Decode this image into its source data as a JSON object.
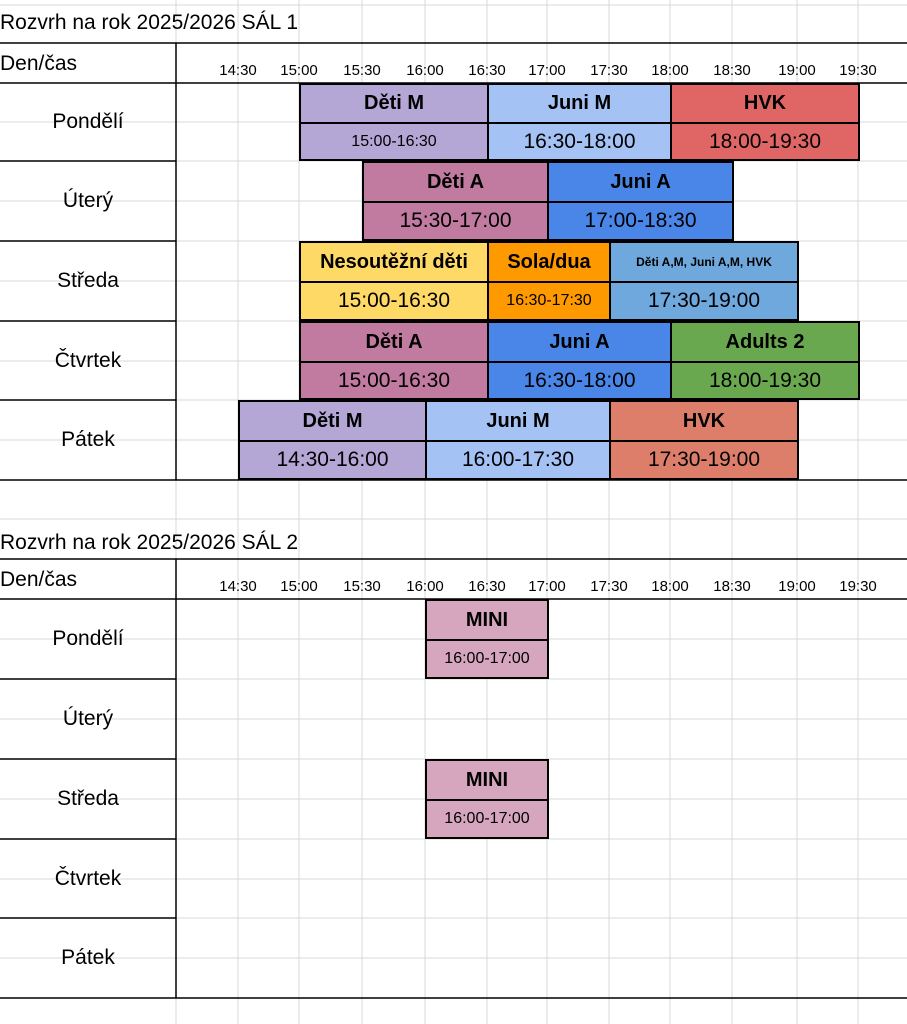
{
  "colors": {
    "deti_m": "#b4a7d6",
    "juni_m": "#a4c2f4",
    "hvk_red": "#e06666",
    "deti_a": "#c27ba0",
    "juni_a": "#4a86e8",
    "nesoutezni": "#ffd966",
    "sola": "#ff9900",
    "deti_mix": "#6fa8dc",
    "adults": "#6aa84f",
    "hvk_salmon": "#dd7e6b",
    "mini": "#d5a6bd"
  },
  "sal1": {
    "title": "Rozvrh na rok 2025/2026 SÁL 1",
    "header": "Den/čas",
    "times": [
      "14:30",
      "15:00",
      "15:30",
      "16:00",
      "16:30",
      "17:00",
      "17:30",
      "18:00",
      "18:30",
      "19:00",
      "19:30"
    ],
    "days": [
      "Pondělí",
      "Úterý",
      "Středa",
      "Čtvrtek",
      "Pátek"
    ],
    "blocks": [
      {
        "name": "Děti M",
        "time": "15:00-16:30",
        "color": "deti_m"
      },
      {
        "name": "Juni M",
        "time": "16:30-18:00",
        "color": "juni_m"
      },
      {
        "name": "HVK",
        "time": "18:00-19:30",
        "color": "hvk_red"
      },
      {
        "name": "Děti A",
        "time": "15:30-17:00",
        "color": "deti_a"
      },
      {
        "name": "Juni A",
        "time": "17:00-18:30",
        "color": "juni_a"
      },
      {
        "name": "Nesoutěžní děti",
        "time": "15:00-16:30",
        "color": "nesoutezni"
      },
      {
        "name": "Sola/dua",
        "time": "16:30-17:30",
        "color": "sola"
      },
      {
        "name": "Děti A,M, Juni A,M, HVK",
        "time": "17:30-19:00",
        "color": "deti_mix"
      },
      {
        "name": "Děti A",
        "time": "15:00-16:30",
        "color": "deti_a"
      },
      {
        "name": "Juni A",
        "time": "16:30-18:00",
        "color": "juni_a"
      },
      {
        "name": "Adults 2",
        "time": "18:00-19:30",
        "color": "adults"
      },
      {
        "name": "Děti M",
        "time": "14:30-16:00",
        "color": "deti_m"
      },
      {
        "name": "Juni M",
        "time": "16:00-17:30",
        "color": "juni_m"
      },
      {
        "name": "HVK",
        "time": "17:30-19:00",
        "color": "hvk_salmon"
      }
    ]
  },
  "sal2": {
    "title": "Rozvrh na rok 2025/2026 SÁL 2",
    "header": "Den/čas",
    "times": [
      "14:30",
      "15:00",
      "15:30",
      "16:00",
      "16:30",
      "17:00",
      "17:30",
      "18:00",
      "18:30",
      "19:00",
      "19:30"
    ],
    "days": [
      "Pondělí",
      "Úterý",
      "Středa",
      "Čtvrtek",
      "Pátek"
    ],
    "blocks": [
      {
        "name": "MINI",
        "time": "16:00-17:00",
        "color": "mini"
      },
      {
        "name": "MINI",
        "time": "16:00-17:00",
        "color": "mini"
      }
    ]
  }
}
